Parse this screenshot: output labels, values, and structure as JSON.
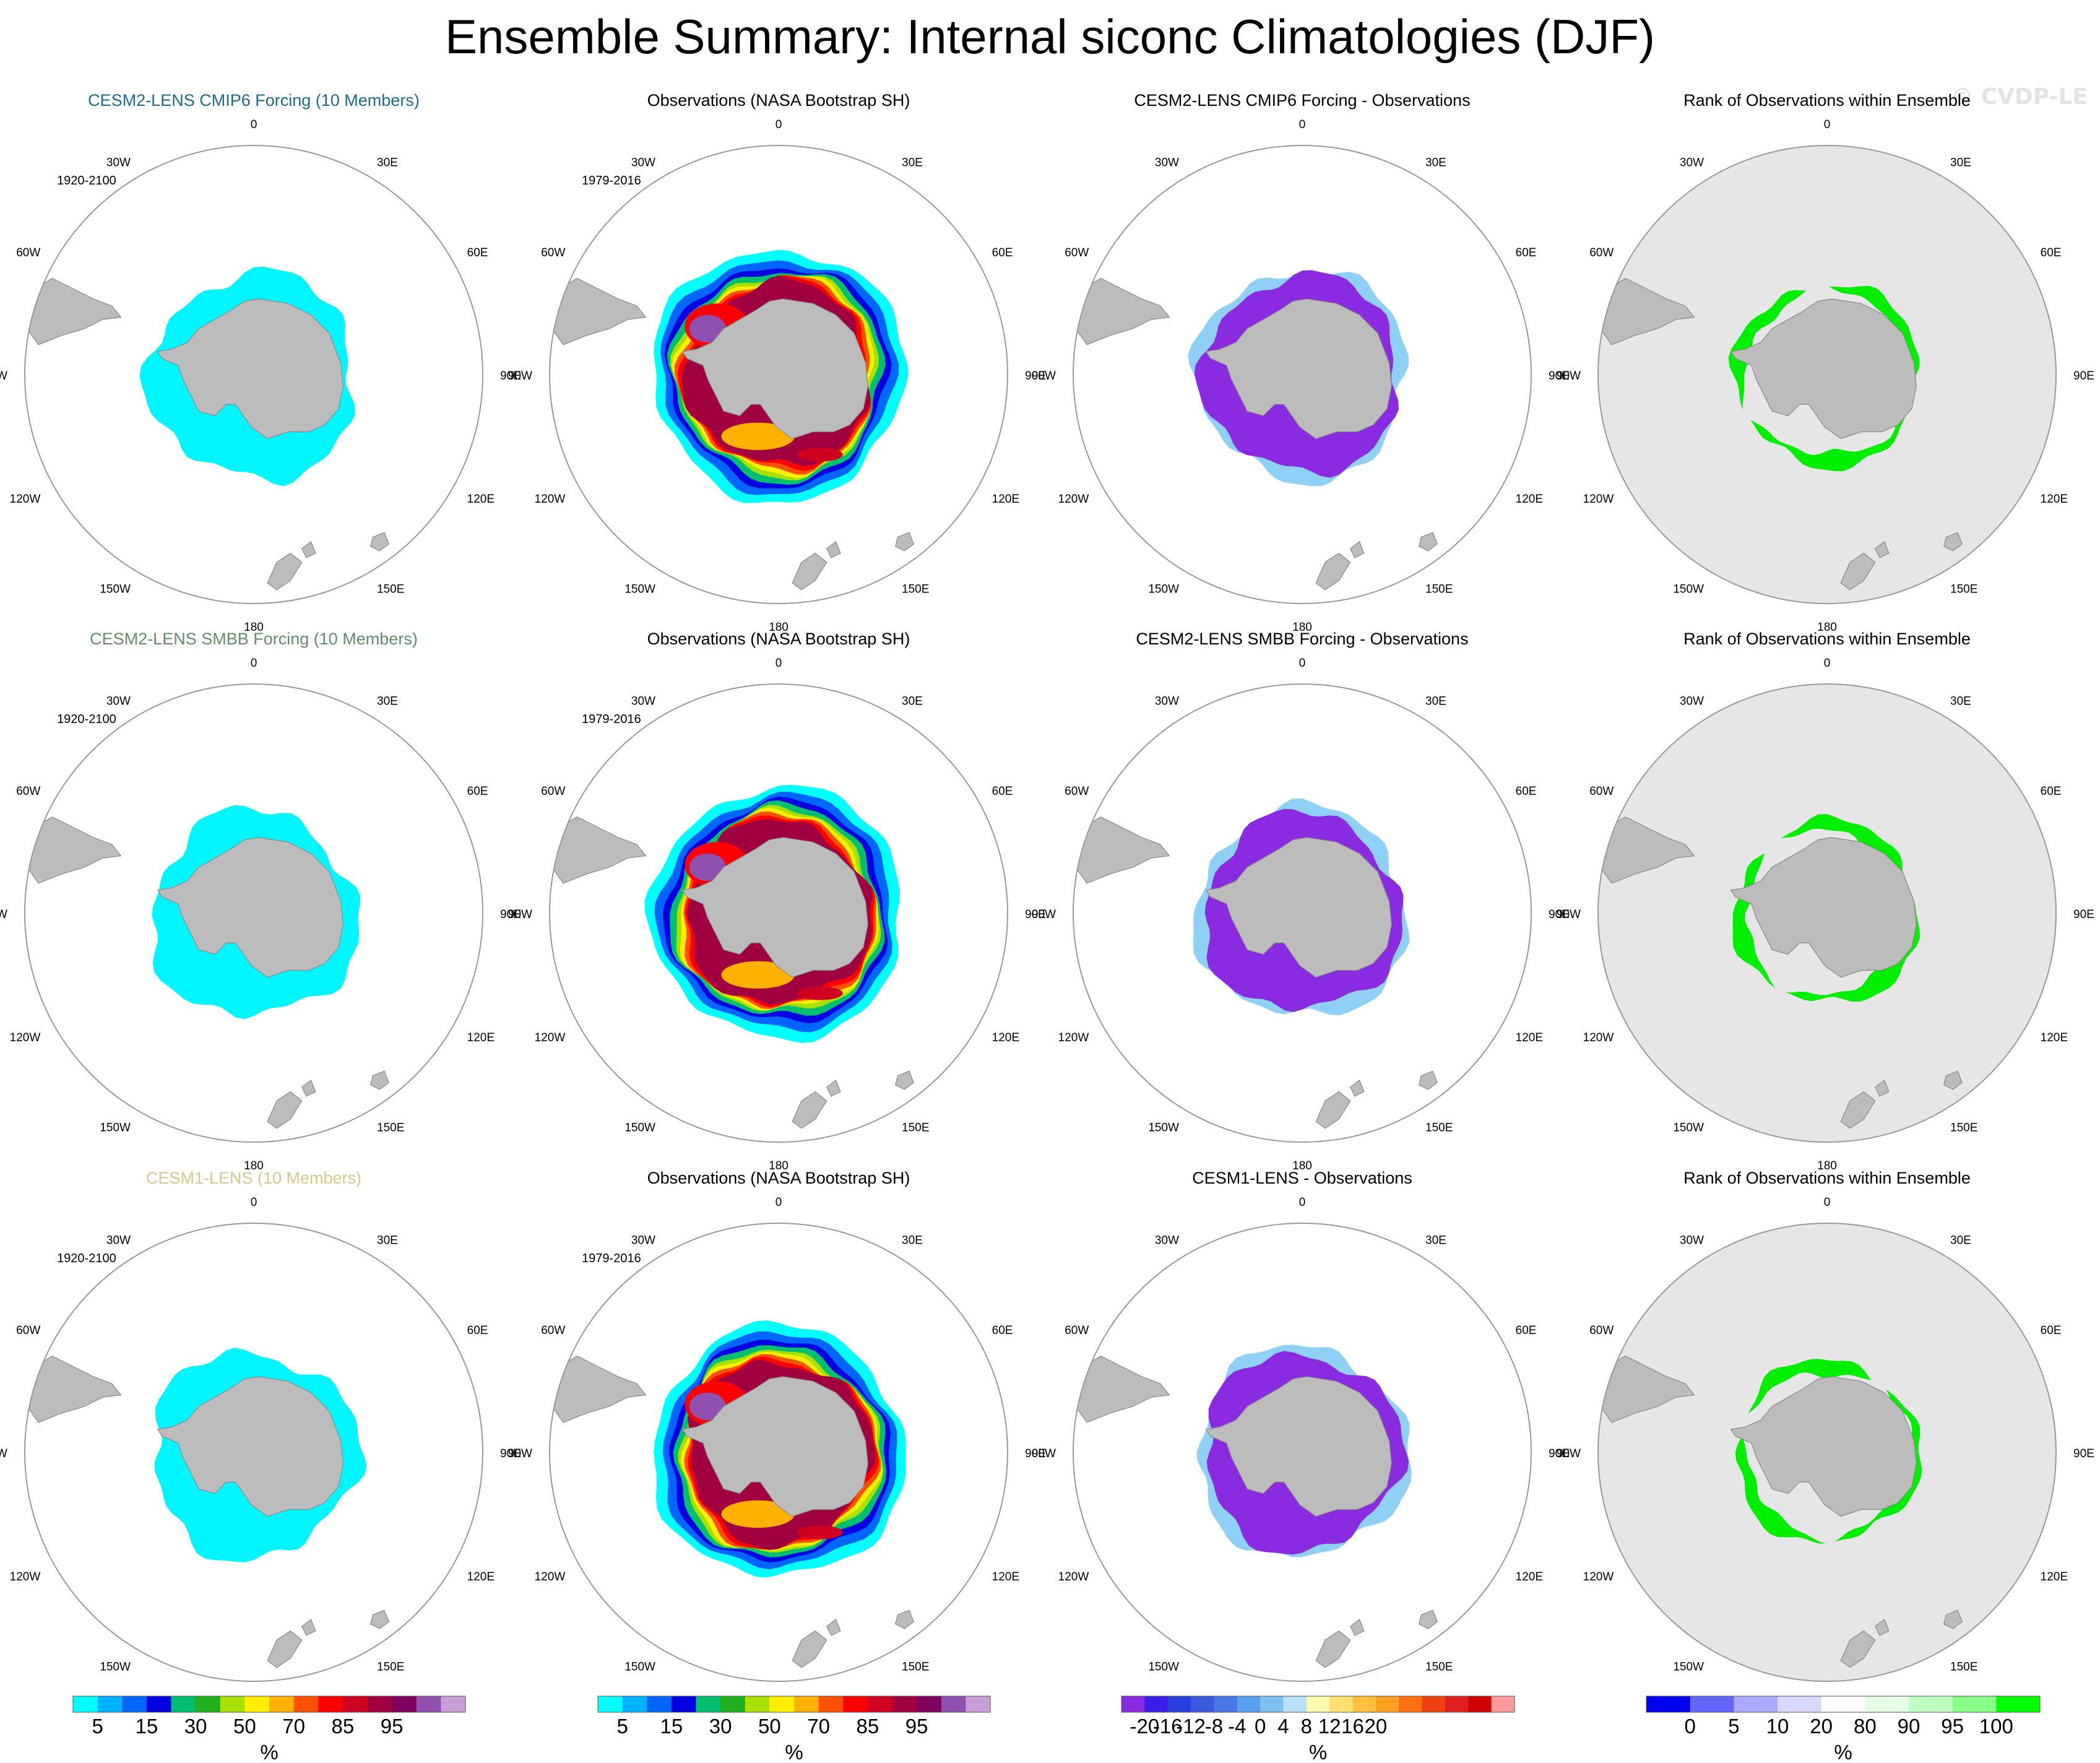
{
  "page": {
    "title": "Ensemble Summary: Internal siconc Climatologies (DJF)",
    "watermark": "© CVDP-LE"
  },
  "colors": {
    "land": "#bcbcbc",
    "ocean": "#ffffff",
    "rank_background": "#e6e6e6",
    "circle": "#9a9a9a",
    "row_title_colors": [
      "#1d6b8c",
      "#5f8f63",
      "#d6c88a"
    ],
    "ice_fill": "#00f5ff",
    "diff_fill": "#8a2be2",
    "diff_edge": "#33aaee",
    "rank_fill": "#00ee00",
    "rank_low": "#2222ee"
  },
  "lon_labels": [
    "0",
    "30E",
    "60E",
    "90E",
    "120E",
    "150E",
    "180",
    "150W",
    "120W",
    "90W",
    "60W",
    "30W"
  ],
  "rows": [
    {
      "model": {
        "title": "CESM2-LENS CMIP6 Forcing (10 Members)",
        "years": "1920-2100"
      },
      "obs": {
        "title": "Observations (NASA Bootstrap SH)",
        "years": "1979-2016"
      },
      "diff": {
        "title": "CESM2-LENS CMIP6 Forcing - Observations"
      },
      "rank": {
        "title": "Rank of Observations within Ensemble"
      }
    },
    {
      "model": {
        "title": "CESM2-LENS SMBB Forcing (10 Members)",
        "years": "1920-2100"
      },
      "obs": {
        "title": "Observations (NASA Bootstrap SH)",
        "years": "1979-2016"
      },
      "diff": {
        "title": "CESM2-LENS SMBB Forcing - Observations"
      },
      "rank": {
        "title": "Rank of Observations within Ensemble"
      }
    },
    {
      "model": {
        "title": "CESM1-LENS (10 Members)",
        "years": "1920-2100"
      },
      "obs": {
        "title": "Observations (NASA Bootstrap SH)",
        "years": "1979-2016"
      },
      "diff": {
        "title": "CESM1-LENS - Observations"
      },
      "rank": {
        "title": "Rank of Observations within Ensemble"
      }
    }
  ],
  "chart_data": [
    {
      "type": "heatmap",
      "projection": "south-polar-stereographic",
      "variable": "siconc",
      "season": "DJF",
      "colorbars": [
        {
          "name": "siconc",
          "unit": "%",
          "colors": [
            "#00ffff",
            "#00b3ff",
            "#0066ff",
            "#0000e0",
            "#00c070",
            "#20b020",
            "#a8e000",
            "#ffee00",
            "#ffb000",
            "#ff5000",
            "#ff0000",
            "#d00020",
            "#a00040",
            "#800060",
            "#9050b0",
            "#c8a0d8"
          ],
          "tick_labels": [
            "5",
            "15",
            "30",
            "50",
            "70",
            "85",
            "95"
          ]
        },
        {
          "name": "difference",
          "unit": "%",
          "colors": [
            "#8a2be2",
            "#3a1fe8",
            "#2a3fe0",
            "#3a5ae0",
            "#4a78e8",
            "#5aa0f0",
            "#80c0f0",
            "#b8e0f8",
            "#fff8b0",
            "#ffe070",
            "#ffc040",
            "#ffa020",
            "#ff7010",
            "#f04010",
            "#e02020",
            "#d00000",
            "#ff9a9a"
          ],
          "tick_labels": [
            "-20",
            "-16",
            "-12",
            "-8",
            "-4",
            "0",
            "4",
            "8",
            "12",
            "16",
            "20"
          ]
        },
        {
          "name": "rank",
          "unit": "%",
          "colors": [
            "#0000ee",
            "#6666ff",
            "#aaaaff",
            "#d8d8ff",
            "#ffffff",
            "#e4ffe4",
            "#bfffbf",
            "#88ff88",
            "#00ff00"
          ],
          "tick_labels": [
            "0",
            "5",
            "10",
            "20",
            "80",
            "90",
            "95",
            "100"
          ]
        }
      ]
    }
  ]
}
